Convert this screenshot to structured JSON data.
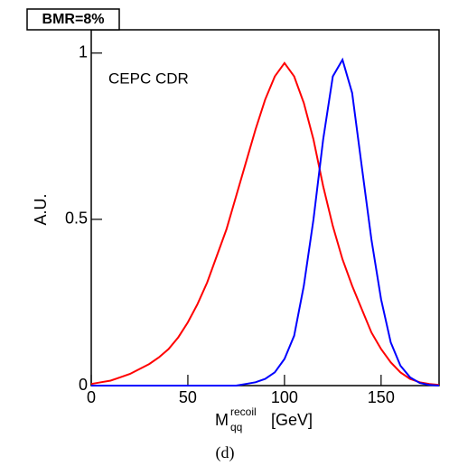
{
  "chart_data": {
    "type": "line",
    "title": "BMR=8%",
    "annotation": "CEPC CDR",
    "y_label": "A.U.",
    "x_label": "M",
    "x_label_sub": "qq",
    "x_label_sup": "recoil",
    "x_label_unit": "[GeV]",
    "caption": "(d)",
    "xlim": [
      0,
      180
    ],
    "ylim": [
      0,
      1.07
    ],
    "xticks": [
      0,
      50,
      100,
      150
    ],
    "yticks": [
      0,
      0.5,
      1
    ],
    "x": [
      0,
      5,
      10,
      15,
      20,
      25,
      30,
      35,
      40,
      45,
      50,
      55,
      60,
      65,
      70,
      75,
      80,
      85,
      90,
      95,
      100,
      105,
      110,
      115,
      120,
      125,
      130,
      135,
      140,
      145,
      150,
      155,
      160,
      165,
      170,
      175,
      180
    ],
    "series": [
      {
        "color": "#ff0000",
        "values": [
          0.005,
          0.01,
          0.015,
          0.025,
          0.035,
          0.05,
          0.065,
          0.085,
          0.11,
          0.145,
          0.19,
          0.245,
          0.31,
          0.39,
          0.47,
          0.57,
          0.67,
          0.77,
          0.86,
          0.93,
          0.97,
          0.93,
          0.85,
          0.74,
          0.6,
          0.48,
          0.38,
          0.3,
          0.23,
          0.16,
          0.11,
          0.07,
          0.04,
          0.02,
          0.01,
          0.005,
          0.002
        ]
      },
      {
        "color": "#0000ff",
        "values": [
          0,
          0,
          0,
          0,
          0,
          0,
          0,
          0,
          0,
          0,
          0,
          0,
          0,
          0,
          0,
          0,
          0.005,
          0.01,
          0.02,
          0.04,
          0.08,
          0.15,
          0.3,
          0.5,
          0.74,
          0.93,
          0.98,
          0.88,
          0.66,
          0.44,
          0.26,
          0.13,
          0.06,
          0.025,
          0.008,
          0.002,
          0
        ]
      }
    ]
  }
}
